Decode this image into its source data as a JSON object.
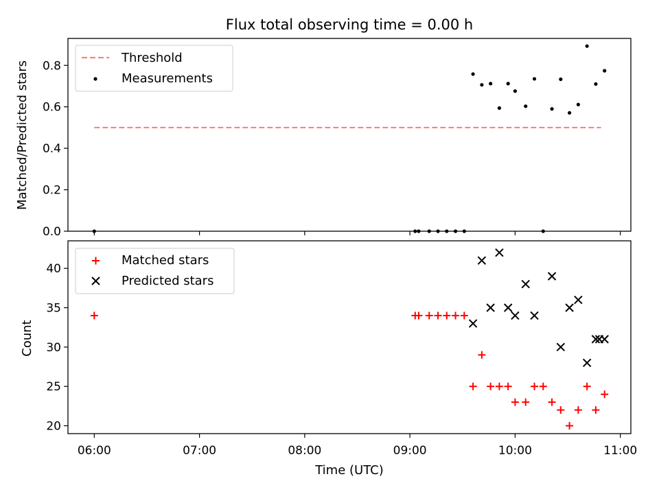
{
  "title": "Flux total observing time = 0.00 h",
  "chart_data": [
    {
      "type": "scatter",
      "panel": "top",
      "title": "Flux total observing time = 0.00 h",
      "xlabel": "",
      "ylabel": "Matched/Predicted stars",
      "xlim": [
        "05:45",
        "11:06"
      ],
      "ylim": [
        0,
        0.93
      ],
      "yticks": [
        0.0,
        0.2,
        0.4,
        0.6,
        0.8
      ],
      "legend": {
        "placement": "top-left",
        "entries": [
          "Threshold",
          "Measurements"
        ]
      },
      "grid": false,
      "threshold": {
        "name": "Threshold",
        "x": [
          "06:00",
          "10:49"
        ],
        "y": 0.5,
        "color": "#ff7f7f",
        "style": "dashed"
      },
      "series": [
        {
          "name": "Measurements",
          "marker": "dot",
          "color": "#000000",
          "points": [
            [
              "06:00",
              0.0
            ],
            [
              "09:03",
              0.0
            ],
            [
              "09:05",
              0.0
            ],
            [
              "09:11",
              0.0
            ],
            [
              "09:16",
              0.0
            ],
            [
              "09:21",
              0.0
            ],
            [
              "09:26",
              0.0
            ],
            [
              "09:31",
              0.0
            ],
            [
              "09:36",
              0.758
            ],
            [
              "09:41",
              0.706
            ],
            [
              "09:46",
              0.712
            ],
            [
              "09:51",
              0.594
            ],
            [
              "09:56",
              0.712
            ],
            [
              "10:00",
              0.676
            ],
            [
              "10:06",
              0.603
            ],
            [
              "10:11",
              0.735
            ],
            [
              "10:16",
              0.0
            ],
            [
              "10:21",
              0.59
            ],
            [
              "10:26",
              0.733
            ],
            [
              "10:31",
              0.571
            ],
            [
              "10:36",
              0.611
            ],
            [
              "10:41",
              0.893
            ],
            [
              "10:46",
              0.71
            ],
            [
              "10:51",
              0.774
            ]
          ]
        }
      ]
    },
    {
      "type": "scatter",
      "panel": "bottom",
      "xlabel": "Time (UTC)",
      "ylabel": "Count",
      "xlim": [
        "05:45",
        "11:06"
      ],
      "ylim": [
        19,
        43.5
      ],
      "yticks": [
        20,
        25,
        30,
        35,
        40
      ],
      "xticks": [
        "06:00",
        "07:00",
        "08:00",
        "09:00",
        "10:00",
        "11:00"
      ],
      "legend": {
        "placement": "top-left",
        "entries": [
          "Matched stars",
          "Predicted stars"
        ]
      },
      "grid": false,
      "series": [
        {
          "name": "Matched stars",
          "marker": "plus",
          "color": "#ff0000",
          "points": [
            [
              "06:00",
              34
            ],
            [
              "09:03",
              34
            ],
            [
              "09:05",
              34
            ],
            [
              "09:11",
              34
            ],
            [
              "09:16",
              34
            ],
            [
              "09:21",
              34
            ],
            [
              "09:26",
              34
            ],
            [
              "09:31",
              34
            ],
            [
              "09:36",
              25
            ],
            [
              "09:41",
              29
            ],
            [
              "09:46",
              25
            ],
            [
              "09:51",
              25
            ],
            [
              "09:56",
              25
            ],
            [
              "10:00",
              23
            ],
            [
              "10:06",
              23
            ],
            [
              "10:11",
              25
            ],
            [
              "10:16",
              25
            ],
            [
              "10:21",
              23
            ],
            [
              "10:26",
              22
            ],
            [
              "10:31",
              20
            ],
            [
              "10:36",
              22
            ],
            [
              "10:41",
              25
            ],
            [
              "10:46",
              22
            ],
            [
              "10:51",
              24
            ]
          ]
        },
        {
          "name": "Predicted stars",
          "marker": "x",
          "color": "#000000",
          "points": [
            [
              "09:36",
              33
            ],
            [
              "09:41",
              41
            ],
            [
              "09:46",
              35
            ],
            [
              "09:51",
              42
            ],
            [
              "09:56",
              35
            ],
            [
              "10:00",
              34
            ],
            [
              "10:06",
              38
            ],
            [
              "10:11",
              34
            ],
            [
              "10:21",
              39
            ],
            [
              "10:26",
              30
            ],
            [
              "10:31",
              35
            ],
            [
              "10:36",
              36
            ],
            [
              "10:41",
              28
            ],
            [
              "10:46",
              31
            ],
            [
              "10:48",
              31
            ],
            [
              "10:51",
              31
            ]
          ]
        }
      ]
    }
  ]
}
